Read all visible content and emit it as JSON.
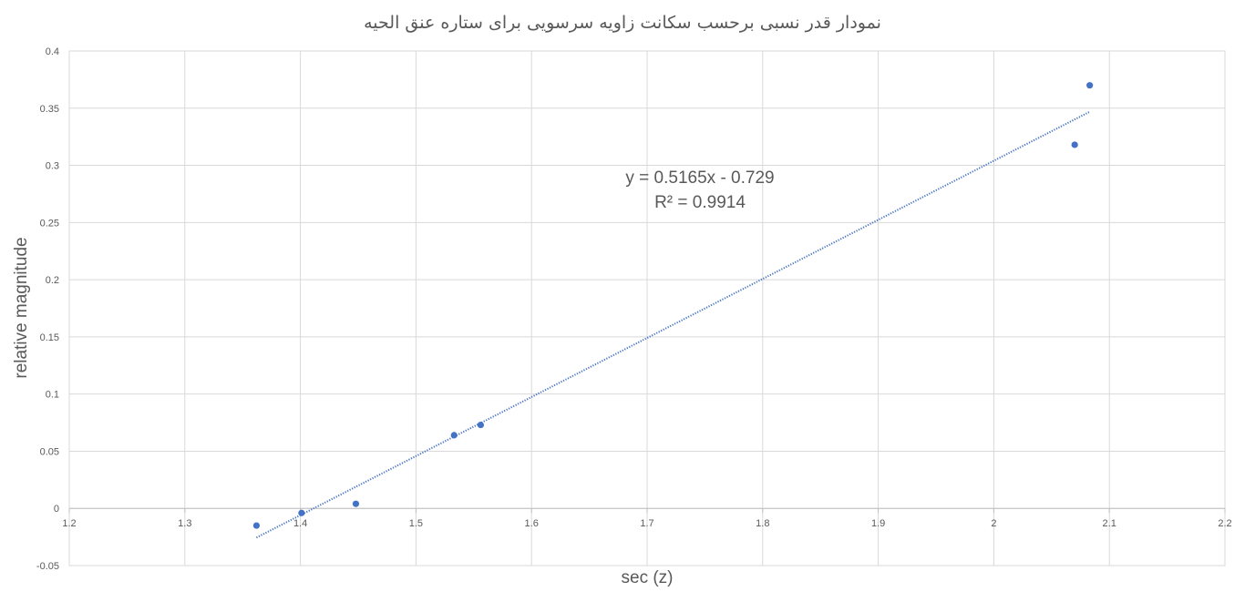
{
  "chart_data": {
    "type": "scatter",
    "title": "نمودار قدر نسبی برحسب سکانت زاویه سرسویی برای ستاره عنق الحیه",
    "xlabel": "sec (z)",
    "ylabel": "relative magnitude",
    "xlim": [
      1.2,
      2.2
    ],
    "ylim": [
      -0.05,
      0.4
    ],
    "x_ticks": [
      "1.2",
      "1.3",
      "1.4",
      "1.5",
      "1.6",
      "1.7",
      "1.8",
      "1.9",
      "2",
      "2.1",
      "2.2"
    ],
    "y_ticks": [
      "-0.05",
      "0",
      "0.05",
      "0.1",
      "0.15",
      "0.2",
      "0.25",
      "0.3",
      "0.35",
      "0.4"
    ],
    "grid": true,
    "legend": "none",
    "point_color": "#4472C4",
    "trendline_color": "#4472C4",
    "points": [
      {
        "x": 1.362,
        "y": -0.015
      },
      {
        "x": 1.401,
        "y": -0.004
      },
      {
        "x": 1.448,
        "y": 0.004
      },
      {
        "x": 1.533,
        "y": 0.064
      },
      {
        "x": 1.556,
        "y": 0.073
      },
      {
        "x": 2.07,
        "y": 0.318
      },
      {
        "x": 2.083,
        "y": 0.37
      }
    ],
    "trendline": {
      "type": "linear",
      "slope": 0.5165,
      "intercept": -0.729,
      "x_range": [
        1.362,
        2.083
      ],
      "equation_label": "y = 0.5165x - 0.729",
      "r2_label": "R² = 0.9914"
    }
  }
}
